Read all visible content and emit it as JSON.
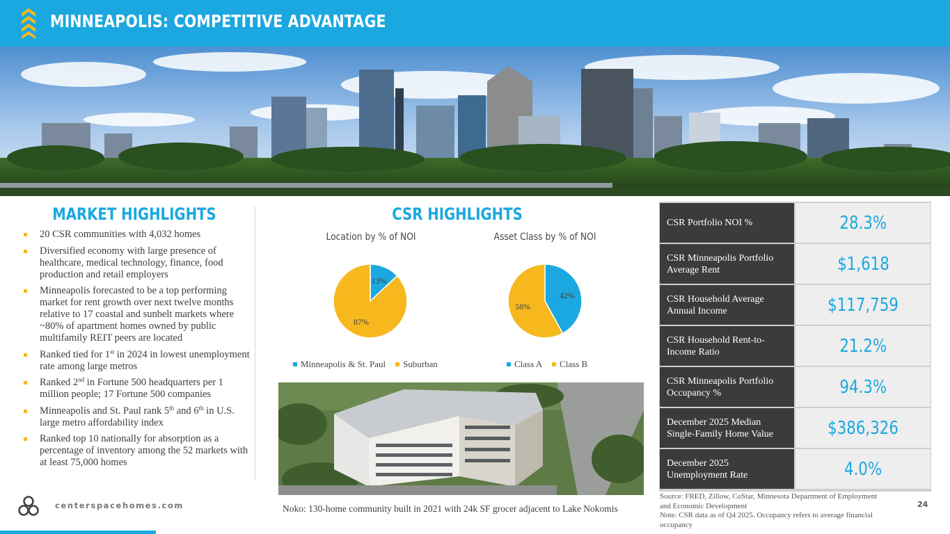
{
  "header": {
    "title": "MINNEAPOLIS: COMPETITIVE ADVANTAGE"
  },
  "colors": {
    "brand_blue": "#1ba8e0",
    "accent_gold": "#f7b81e",
    "dark_cell": "#3b3b3b"
  },
  "market": {
    "title": "MARKET HIGHLIGHTS",
    "bullets": [
      {
        "text": "20 CSR communities with 4,032 homes"
      },
      {
        "text": "Diversified economy with large presence of healthcare, medical technology, finance, food production and retail employers"
      },
      {
        "text": "Minneapolis forecasted to be a top performing market for rent growth over next twelve months relative to 17 coastal and sunbelt markets where ~80% of apartment homes owned by public multifamily REIT peers are located"
      },
      {
        "a": "Ranked tied for 1",
        "sup": "st",
        "b": " in 2024 in lowest unemployment rate among large metros"
      },
      {
        "a": "Ranked 2",
        "sup": "nd",
        "b": " in Fortune 500 headquarters per 1 million people;  17 Fortune 500 companies"
      },
      {
        "a": "Minneapolis and St. Paul rank 5",
        "sup": "th",
        "b": " and 6",
        "sup2": "th",
        "c": " in U.S. large metro affordability index"
      },
      {
        "text": "Ranked top 10 nationally for absorption as a percentage of inventory among the 52 markets with at least 75,000 homes"
      }
    ]
  },
  "csr": {
    "title": "CSR HIGHLIGHTS"
  },
  "chart_data": [
    {
      "type": "pie",
      "title": "Location by % of NOI",
      "categories": [
        "Minneapolis & St. Paul",
        "Suburban"
      ],
      "values": [
        13,
        87
      ],
      "labels": [
        "13%",
        "87%"
      ],
      "colors": [
        "#1ba8e0",
        "#f7b81e"
      ],
      "legend": "bottom"
    },
    {
      "type": "pie",
      "title": "Asset Class by % of NOI",
      "categories": [
        "Class A",
        "Class B"
      ],
      "values": [
        42,
        58
      ],
      "labels": [
        "42%",
        "58%"
      ],
      "colors": [
        "#1ba8e0",
        "#f7b81e"
      ],
      "legend": "bottom"
    }
  ],
  "photo": {
    "caption": "Noko: 130-home community built in 2021 with 24k SF grocer adjacent to Lake Nokomis"
  },
  "stats": [
    {
      "label": "CSR Portfolio NOI %",
      "value": "28.3%"
    },
    {
      "label": "CSR Minneapolis Portfolio Average Rent",
      "value": "$1,618"
    },
    {
      "label": "CSR Household Average Annual Income",
      "value": "$117,759"
    },
    {
      "label": "CSR Household Rent-to-Income Ratio",
      "value": "21.2%"
    },
    {
      "label": "CSR Minneapolis Portfolio Occupancy %",
      "value": "94.3%"
    },
    {
      "label": "December 2025 Median Single-Family Home Value",
      "value": "$386,326"
    },
    {
      "label": "December 2025 Unemployment Rate",
      "value": "4.0%"
    }
  ],
  "source": {
    "line1": "Source: FRED, Zillow, CoStar, Minnesota Department of Employment and Economic Development",
    "line2": "Note: CSR data as of Q4 2025. Occupancy refers to average financial occupancy"
  },
  "footer": {
    "website": "centerspacehomes.com",
    "page_number": "24"
  }
}
